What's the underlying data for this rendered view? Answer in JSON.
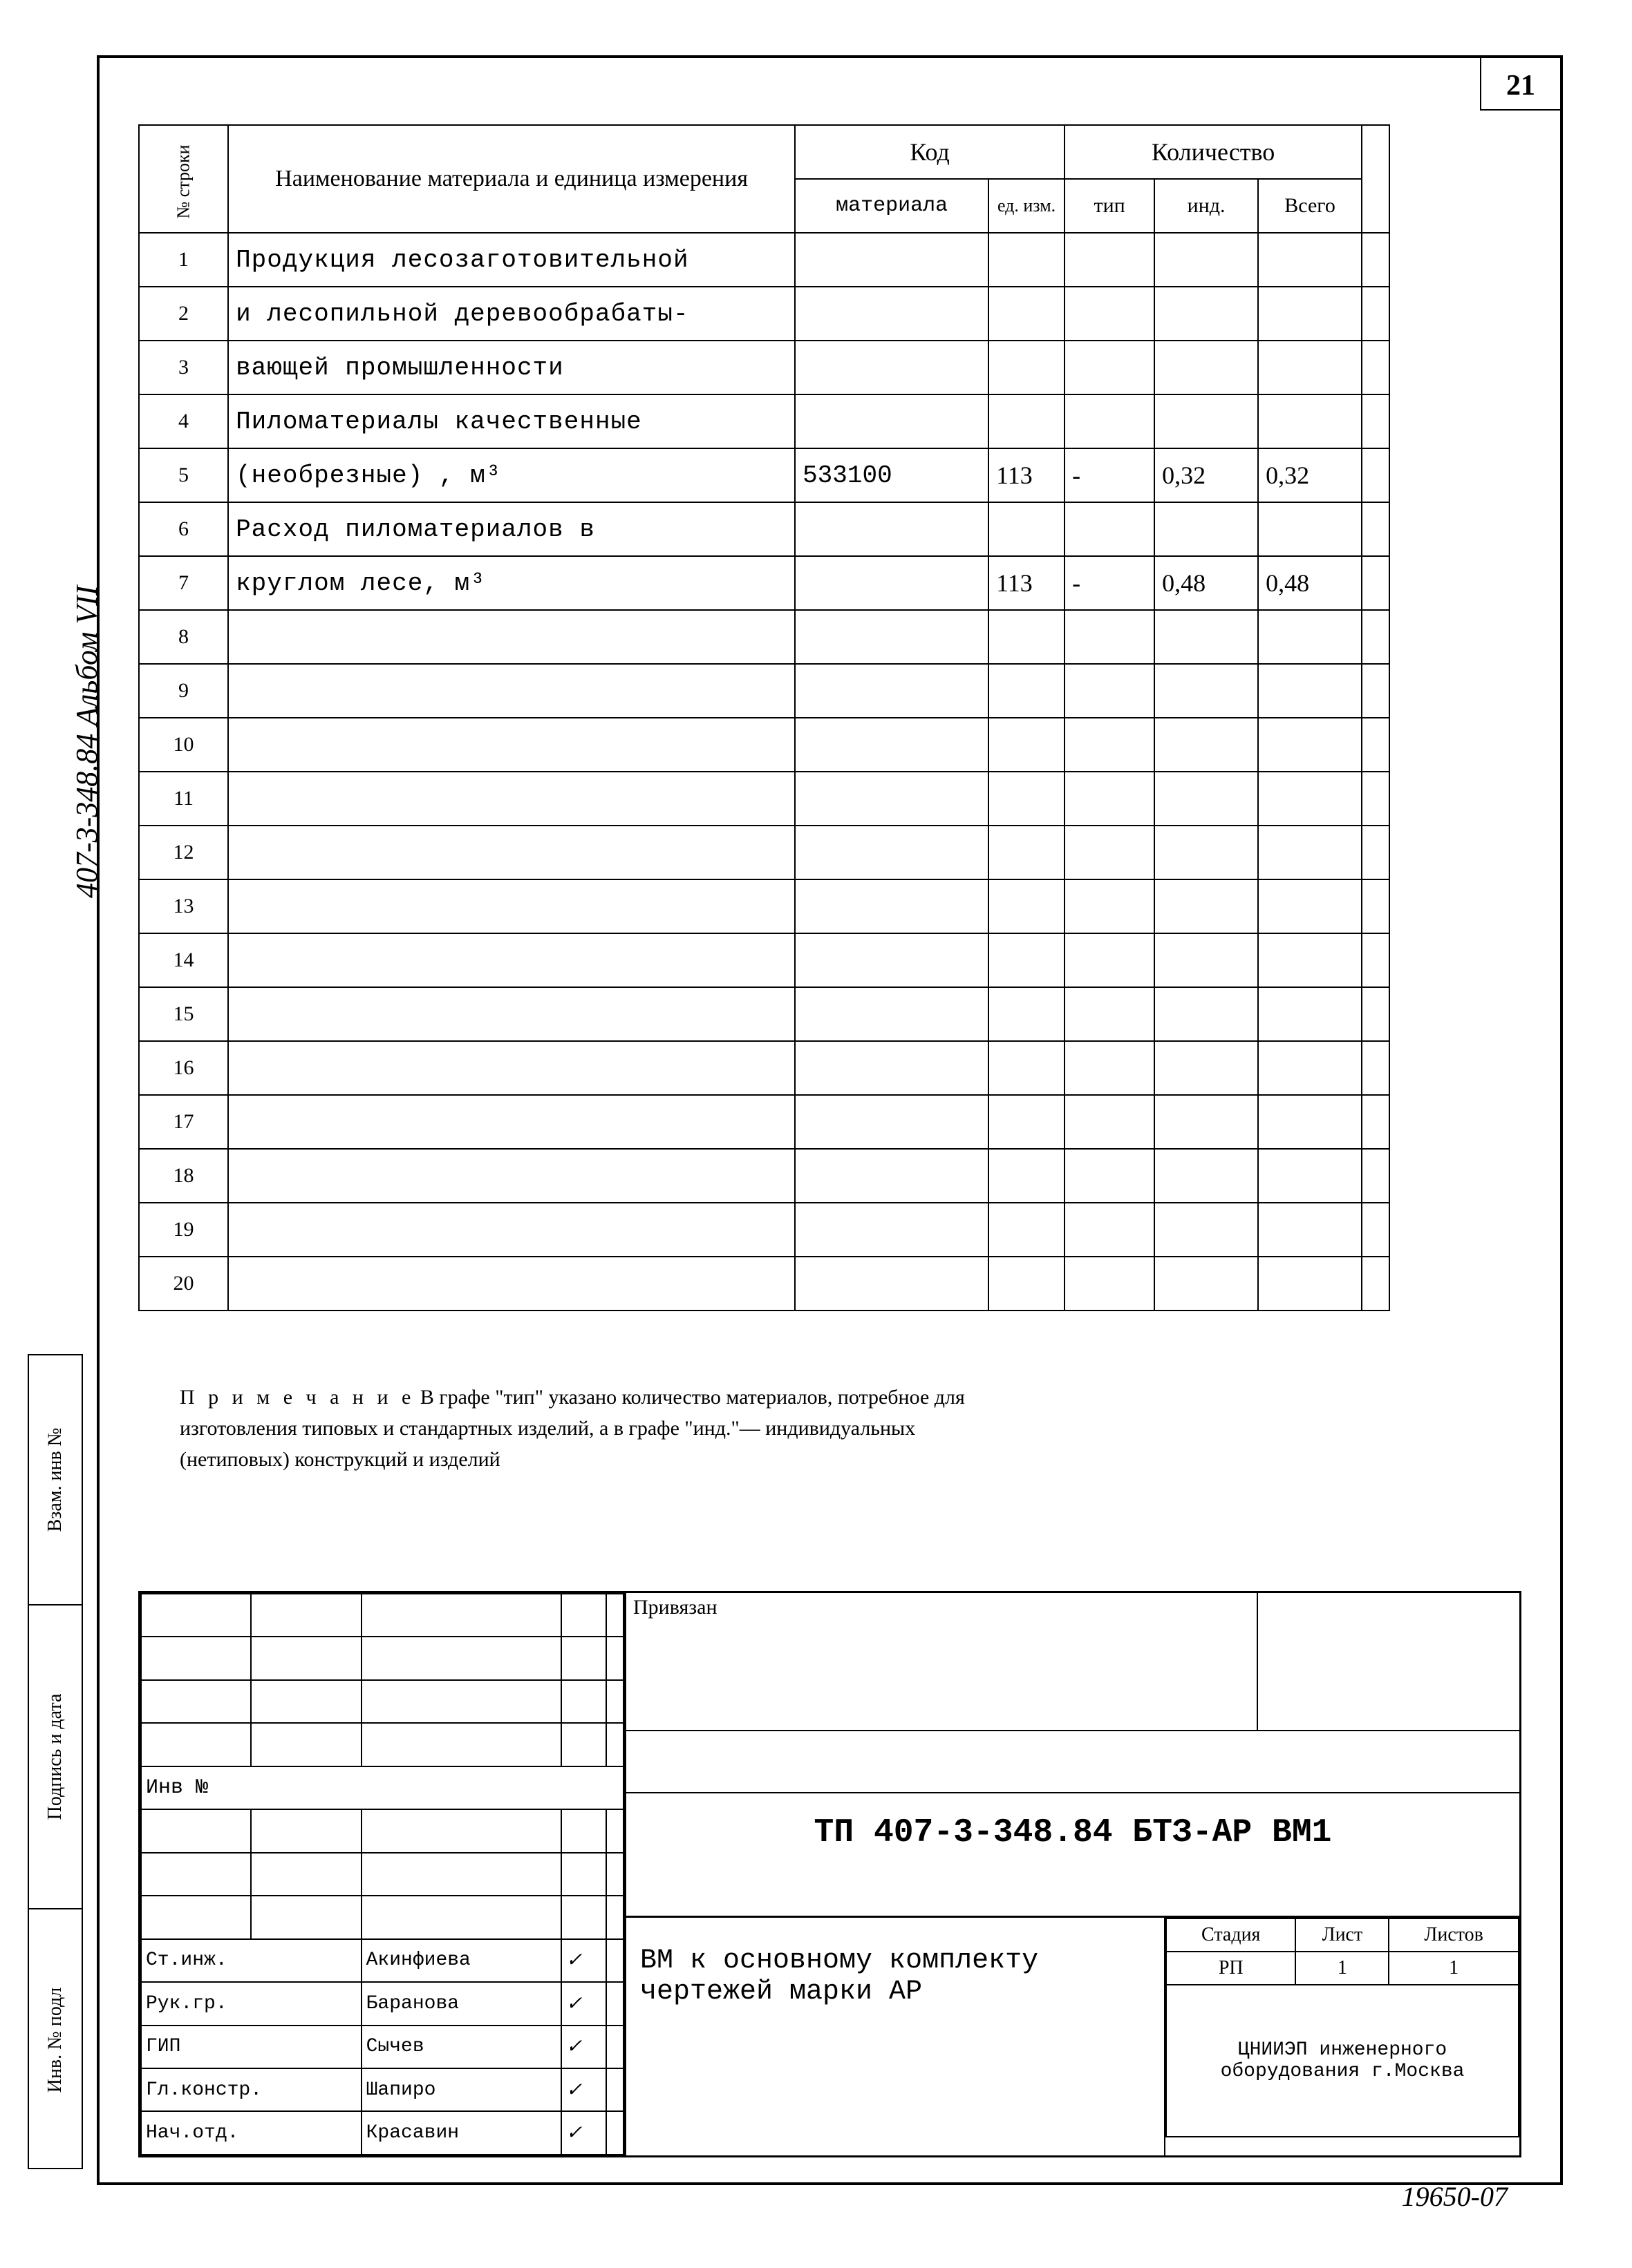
{
  "page_number": "21",
  "side_text": "407-3-348.84   Альбом VII",
  "side_stamp": [
    "Инв. № подл",
    "Подпись и дата",
    "Взам. инв №"
  ],
  "headers": {
    "row_no": "№ строки",
    "name": "Наименование материала и единица измерения",
    "code": "Код",
    "material": "материала",
    "unit": "ед. изм.",
    "qty": "Количество",
    "tip": "тип",
    "ind": "инд.",
    "total": "Всего"
  },
  "rows": [
    {
      "n": "1",
      "name": "Продукция лесозаготовительной",
      "mat": "",
      "unit": "",
      "tip": "",
      "ind": "",
      "tot": ""
    },
    {
      "n": "2",
      "name": "и лесопильной деревообрабаты-",
      "mat": "",
      "unit": "",
      "tip": "",
      "ind": "",
      "tot": ""
    },
    {
      "n": "3",
      "name": "вающей промышленности",
      "mat": "",
      "unit": "",
      "tip": "",
      "ind": "",
      "tot": ""
    },
    {
      "n": "4",
      "name": "Пиломатериалы качественные",
      "mat": "",
      "unit": "",
      "tip": "",
      "ind": "",
      "tot": ""
    },
    {
      "n": "5",
      "name": "(необрезные) , м³",
      "mat": "533100",
      "unit": "113",
      "tip": "-",
      "ind": "0,32",
      "tot": "0,32"
    },
    {
      "n": "6",
      "name": "Расход пиломатериалов в",
      "mat": "",
      "unit": "",
      "tip": "",
      "ind": "",
      "tot": ""
    },
    {
      "n": "7",
      "name": "круглом лесе,  м³",
      "mat": "",
      "unit": "113",
      "tip": "-",
      "ind": "0,48",
      "tot": "0,48"
    },
    {
      "n": "8",
      "name": "",
      "mat": "",
      "unit": "",
      "tip": "",
      "ind": "",
      "tot": ""
    },
    {
      "n": "9",
      "name": "",
      "mat": "",
      "unit": "",
      "tip": "",
      "ind": "",
      "tot": ""
    },
    {
      "n": "10",
      "name": "",
      "mat": "",
      "unit": "",
      "tip": "",
      "ind": "",
      "tot": ""
    },
    {
      "n": "11",
      "name": "",
      "mat": "",
      "unit": "",
      "tip": "",
      "ind": "",
      "tot": ""
    },
    {
      "n": "12",
      "name": "",
      "mat": "",
      "unit": "",
      "tip": "",
      "ind": "",
      "tot": ""
    },
    {
      "n": "13",
      "name": "",
      "mat": "",
      "unit": "",
      "tip": "",
      "ind": "",
      "tot": ""
    },
    {
      "n": "14",
      "name": "",
      "mat": "",
      "unit": "",
      "tip": "",
      "ind": "",
      "tot": ""
    },
    {
      "n": "15",
      "name": "",
      "mat": "",
      "unit": "",
      "tip": "",
      "ind": "",
      "tot": ""
    },
    {
      "n": "16",
      "name": "",
      "mat": "",
      "unit": "",
      "tip": "",
      "ind": "",
      "tot": ""
    },
    {
      "n": "17",
      "name": "",
      "mat": "",
      "unit": "",
      "tip": "",
      "ind": "",
      "tot": ""
    },
    {
      "n": "18",
      "name": "",
      "mat": "",
      "unit": "",
      "tip": "",
      "ind": "",
      "tot": ""
    },
    {
      "n": "19",
      "name": "",
      "mat": "",
      "unit": "",
      "tip": "",
      "ind": "",
      "tot": ""
    },
    {
      "n": "20",
      "name": "",
      "mat": "",
      "unit": "",
      "tip": "",
      "ind": "",
      "tot": ""
    }
  ],
  "note_lead": "П р и м е ч а н и е",
  "note": " В графе \"тип\" указано количество материалов, потребное для изготовления типовых и стандартных изделий, а в графе \"инд.\"— индивидуальных (нетиповых) конструкций и изделий",
  "priv_label": "Привязан",
  "inv_label": "Инв №",
  "doc_number": "ТП 407-3-348.84  БТЗ-АР ВМ1",
  "description": "ВМ к основному комплекту чертежей марки АР",
  "roles": [
    {
      "role": "Ст.инж.",
      "name": "Акинфиева",
      "sig": "✓"
    },
    {
      "role": "Рук.гр.",
      "name": "Баранова",
      "sig": "✓"
    },
    {
      "role": "ГИП",
      "name": "Сычев",
      "sig": "✓"
    },
    {
      "role": "Гл.констр.",
      "name": "Шапиро",
      "sig": "✓"
    },
    {
      "role": "Нач.отд.",
      "name": "Красавин",
      "sig": "✓"
    }
  ],
  "meta": {
    "stage_h": "Стадия",
    "sheet_h": "Лист",
    "sheets_h": "Листов",
    "stage": "РП",
    "sheet": "1",
    "sheets": "1",
    "org": "ЦНИИЭП инженерного оборудования г.Москва"
  },
  "bottom_code": "19650-07",
  "colors": {
    "ink": "#000000",
    "paper": "#ffffff"
  }
}
